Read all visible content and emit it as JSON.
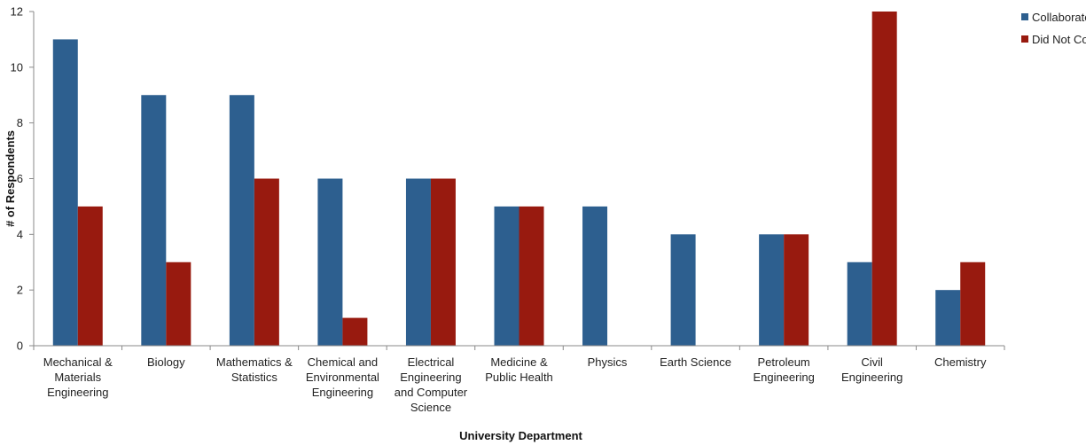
{
  "chart_data": {
    "type": "bar",
    "categories": [
      "Mechanical & Materials Engineering",
      "Biology",
      "Mathematics & Statistics",
      "Chemical and Environmental Engineering",
      "Electrical Engineering and Computer Science",
      "Medicine & Public Health",
      "Physics",
      "Earth Science",
      "Petroleum Engineering",
      "Civil Engineering",
      "Chemistry"
    ],
    "category_lines": [
      [
        "Mechanical &",
        "Materials",
        "Engineering"
      ],
      [
        "Biology"
      ],
      [
        "Mathematics &",
        "Statistics"
      ],
      [
        "Chemical and",
        "Environmental",
        "Engineering"
      ],
      [
        "Electrical",
        "Engineering",
        "and Computer",
        "Science"
      ],
      [
        "Medicine &",
        "Public Health"
      ],
      [
        "Physics"
      ],
      [
        "Earth Science"
      ],
      [
        "Petroleum",
        "Engineering"
      ],
      [
        "Civil",
        "Engineering"
      ],
      [
        "Chemistry"
      ]
    ],
    "series": [
      {
        "name": "Collaborated with Firms",
        "color": "#2d5f8f",
        "values": [
          11,
          9,
          9,
          6,
          6,
          5,
          5,
          4,
          4,
          3,
          2
        ]
      },
      {
        "name": "Did Not Collaborate",
        "color": "#981a0f",
        "values": [
          5,
          3,
          6,
          1,
          6,
          5,
          0,
          0,
          4,
          12,
          3
        ]
      }
    ],
    "title": "",
    "xlabel": "University Department",
    "ylabel": "# of Respondents",
    "ylim": [
      0,
      12
    ],
    "yticks": [
      0,
      2,
      4,
      6,
      8,
      10,
      12
    ],
    "grid": false,
    "legend_position": "top-right"
  }
}
